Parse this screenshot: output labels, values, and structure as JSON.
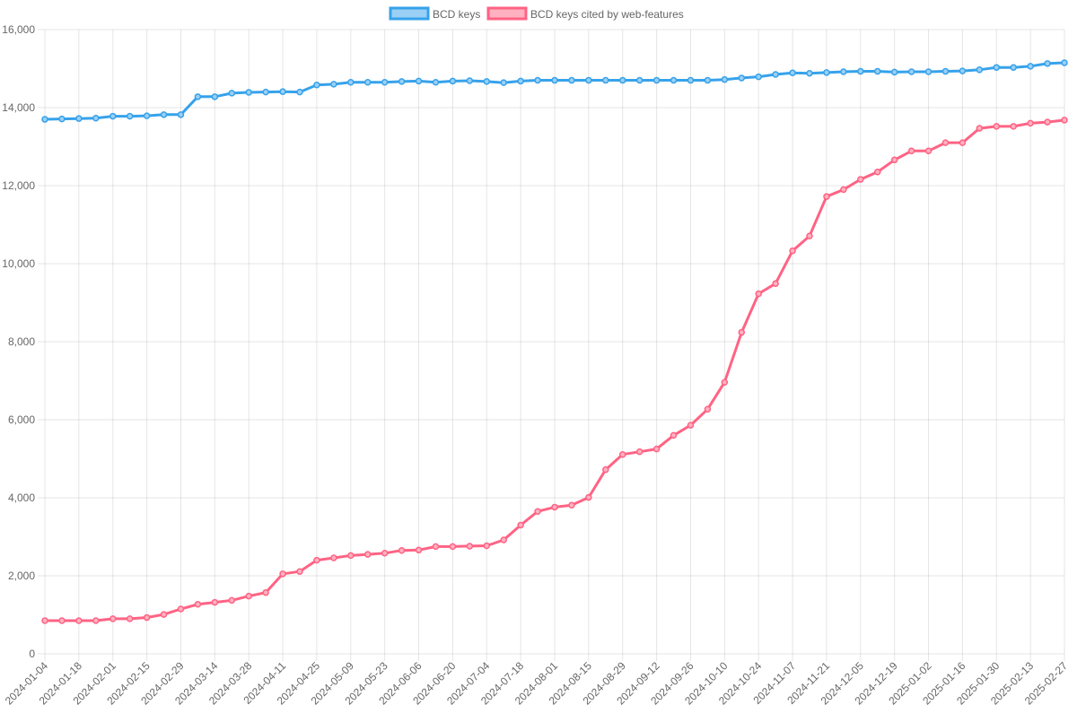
{
  "chart_data": {
    "type": "line",
    "title": "",
    "xlabel": "",
    "ylabel": "",
    "ylim": [
      0,
      16000
    ],
    "y_ticks": [
      0,
      2000,
      4000,
      6000,
      8000,
      10000,
      12000,
      14000,
      16000
    ],
    "grid": true,
    "legend_position": "top",
    "x": [
      "2024-01-04",
      "2024-01-11",
      "2024-01-18",
      "2024-01-25",
      "2024-02-01",
      "2024-02-08",
      "2024-02-15",
      "2024-02-22",
      "2024-02-29",
      "2024-03-07",
      "2024-03-14",
      "2024-03-21",
      "2024-03-28",
      "2024-04-04",
      "2024-04-11",
      "2024-04-18",
      "2024-04-25",
      "2024-05-02",
      "2024-05-09",
      "2024-05-16",
      "2024-05-23",
      "2024-05-30",
      "2024-06-06",
      "2024-06-13",
      "2024-06-20",
      "2024-06-27",
      "2024-07-04",
      "2024-07-11",
      "2024-07-18",
      "2024-07-25",
      "2024-08-01",
      "2024-08-08",
      "2024-08-15",
      "2024-08-22",
      "2024-08-29",
      "2024-09-05",
      "2024-09-12",
      "2024-09-19",
      "2024-09-26",
      "2024-10-03",
      "2024-10-10",
      "2024-10-17",
      "2024-10-24",
      "2024-10-31",
      "2024-11-07",
      "2024-11-14",
      "2024-11-21",
      "2024-11-28",
      "2024-12-05",
      "2024-12-12",
      "2024-12-19",
      "2024-12-26",
      "2025-01-02",
      "2025-01-09",
      "2025-01-16",
      "2025-01-23",
      "2025-01-30",
      "2025-02-06",
      "2025-02-13",
      "2025-02-20",
      "2025-02-27"
    ],
    "series": [
      {
        "name": "BCD keys",
        "color": "#36a2eb",
        "fill_color": "#9ad0f5",
        "values": [
          13700,
          13710,
          13720,
          13730,
          13780,
          13780,
          13790,
          13820,
          13820,
          14280,
          14280,
          14370,
          14390,
          14400,
          14410,
          14400,
          14580,
          14600,
          14650,
          14650,
          14650,
          14670,
          14680,
          14650,
          14680,
          14690,
          14670,
          14640,
          14680,
          14700,
          14700,
          14700,
          14700,
          14700,
          14700,
          14700,
          14700,
          14700,
          14700,
          14700,
          14720,
          14760,
          14790,
          14850,
          14890,
          14880,
          14900,
          14920,
          14930,
          14930,
          14910,
          14920,
          14920,
          14930,
          14940,
          14970,
          15030,
          15030,
          15060,
          15130,
          15150
        ]
      },
      {
        "name": "BCD keys cited by web-features",
        "color": "#ff6384",
        "fill_color": "#ffb1c1",
        "values": [
          850,
          850,
          850,
          850,
          900,
          900,
          930,
          1010,
          1150,
          1270,
          1320,
          1370,
          1480,
          1570,
          2050,
          2110,
          2400,
          2460,
          2520,
          2550,
          2580,
          2650,
          2660,
          2750,
          2750,
          2760,
          2770,
          2920,
          3300,
          3650,
          3760,
          3810,
          4010,
          4720,
          5110,
          5180,
          5250,
          5600,
          5860,
          6270,
          6960,
          8240,
          9230,
          9490,
          10330,
          10710,
          11720,
          11900,
          12160,
          12350,
          12660,
          12890,
          12890,
          13100,
          13100,
          13470,
          13520,
          13520,
          13600,
          13630,
          13680
        ]
      }
    ]
  }
}
